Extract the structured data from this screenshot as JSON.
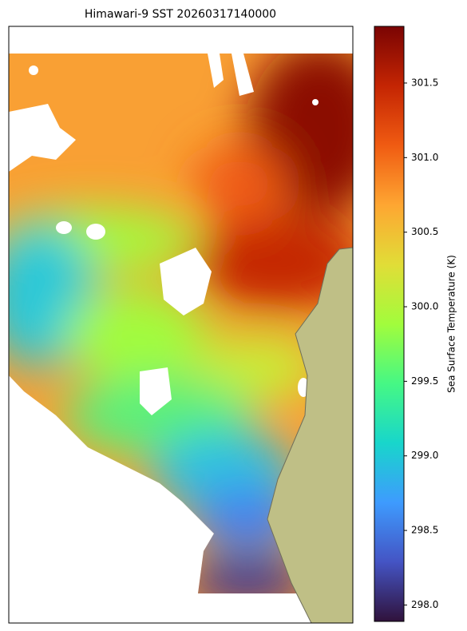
{
  "map": {
    "title": "Himawari-9 SST 20260317140000",
    "colorbar": {
      "label": "Sea Surface Temperature (K)",
      "lim": [
        297.89,
        301.88
      ],
      "ticks": [
        {
          "value": 298,
          "label": "298.0"
        },
        298.5,
        {
          "value": 299,
          "label": "299.0"
        },
        299.5,
        {
          "value": 300,
          "label": "300.0"
        },
        300.5,
        {
          "value": 301,
          "label": "301.0"
        },
        301.5
      ]
    }
  }
}
